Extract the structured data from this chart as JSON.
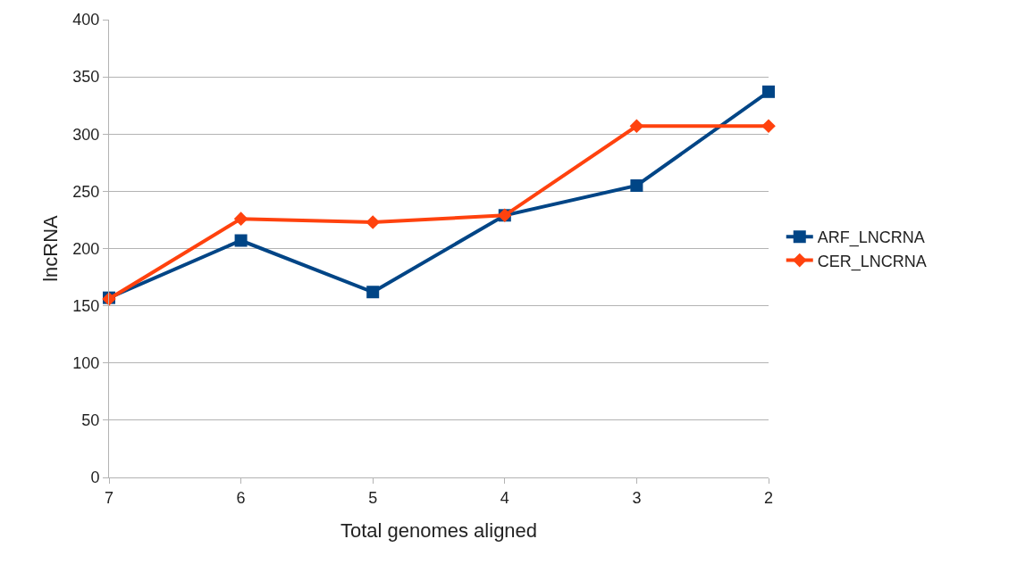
{
  "chart_data": {
    "type": "line",
    "xlabel": "Total genomes aligned",
    "ylabel": "lncRNA",
    "categories": [
      "7",
      "6",
      "5",
      "4",
      "3",
      "2"
    ],
    "series": [
      {
        "name": "ARF_LNCRNA",
        "color": "#004586",
        "marker": "square",
        "values": [
          157,
          207,
          162,
          229,
          255,
          337
        ]
      },
      {
        "name": "CER_LNCRNA",
        "color": "#ff420e",
        "marker": "diamond",
        "values": [
          156,
          226,
          223,
          229,
          307,
          307
        ]
      }
    ],
    "ylim": [
      0,
      400
    ],
    "yticks": [
      0,
      50,
      100,
      150,
      200,
      250,
      300,
      350,
      400
    ],
    "grid": "y",
    "legend": "right"
  }
}
